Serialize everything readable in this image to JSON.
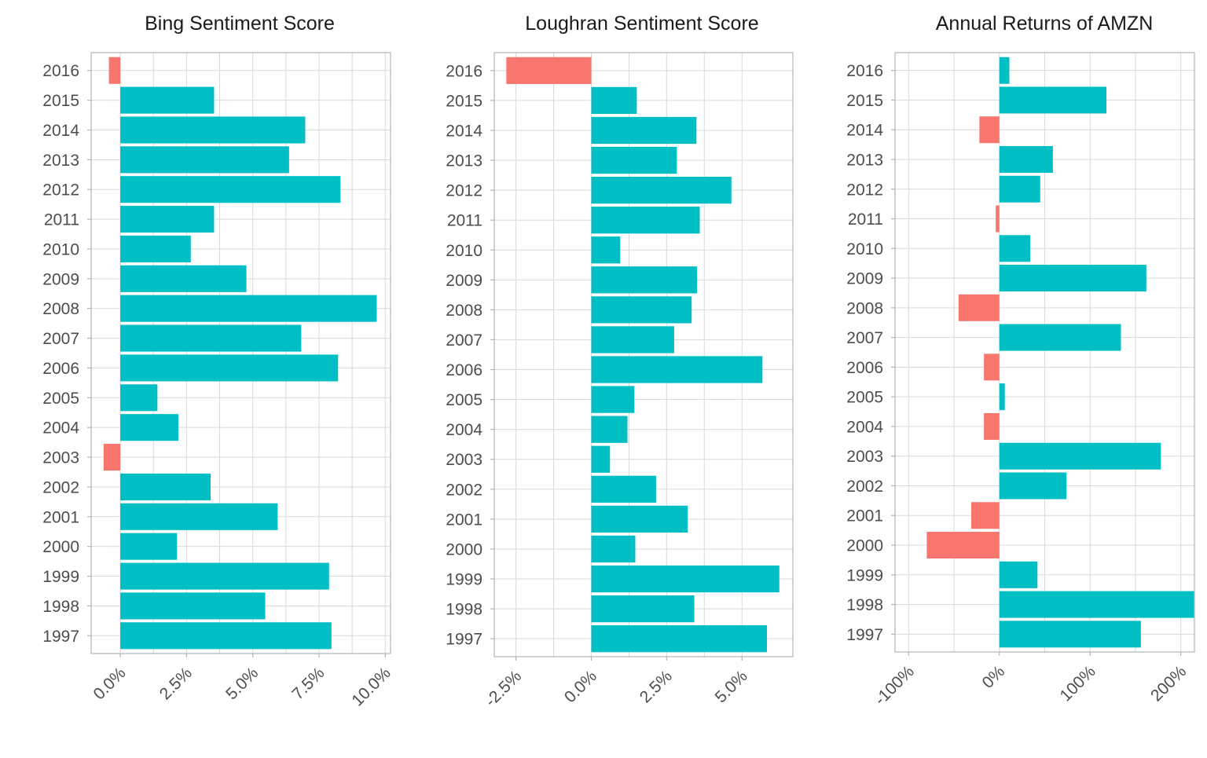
{
  "chart_data": [
    {
      "type": "bar",
      "orientation": "horizontal",
      "title": "Bing Sentiment Score",
      "categories": [
        "1997",
        "1998",
        "1999",
        "2000",
        "2001",
        "2002",
        "2003",
        "2004",
        "2005",
        "2006",
        "2007",
        "2008",
        "2009",
        "2010",
        "2011",
        "2012",
        "2013",
        "2014",
        "2015",
        "2016"
      ],
      "values": [
        0.0797,
        0.0547,
        0.0788,
        0.0214,
        0.0594,
        0.0341,
        -0.0063,
        0.0219,
        0.014,
        0.0822,
        0.0683,
        0.0968,
        0.0476,
        0.0266,
        0.0354,
        0.0831,
        0.0637,
        0.0698,
        0.0354,
        -0.0043
      ],
      "xlim": [
        -0.011,
        0.102
      ],
      "xticks": [
        0.0,
        0.025,
        0.05,
        0.075,
        0.1
      ],
      "xtick_labels": [
        "0.0%",
        "2.5%",
        "5.0%",
        "7.5%",
        "10.0%"
      ],
      "grid": true,
      "positive_color": "#00BFC4",
      "negative_color": "#F8766D"
    },
    {
      "type": "bar",
      "orientation": "horizontal",
      "title": "Loughran Sentiment Score",
      "categories": [
        "1997",
        "1998",
        "1999",
        "2000",
        "2001",
        "2002",
        "2003",
        "2004",
        "2005",
        "2006",
        "2007",
        "2008",
        "2009",
        "2010",
        "2011",
        "2012",
        "2013",
        "2014",
        "2015",
        "2016"
      ],
      "values": [
        0.0583,
        0.0342,
        0.0624,
        0.0146,
        0.032,
        0.0215,
        0.0062,
        0.012,
        0.0143,
        0.0568,
        0.0275,
        0.0333,
        0.0351,
        0.0096,
        0.036,
        0.0465,
        0.0284,
        0.0349,
        0.0151,
        -0.0282
      ],
      "xlim": [
        -0.0322,
        0.0669
      ],
      "xticks": [
        -0.025,
        0.0,
        0.025,
        0.05
      ],
      "xtick_labels": [
        "-2.5%",
        "0.0%",
        "2.5%",
        "5.0%"
      ],
      "grid": true,
      "positive_color": "#00BFC4",
      "negative_color": "#F8766D"
    },
    {
      "type": "bar",
      "orientation": "horizontal",
      "title": "Annual Returns of AMZN",
      "categories": [
        "1997",
        "1998",
        "1999",
        "2000",
        "2001",
        "2002",
        "2003",
        "2004",
        "2005",
        "2006",
        "2007",
        "2008",
        "2009",
        "2010",
        "2011",
        "2012",
        "2013",
        "2014",
        "2015",
        "2016"
      ],
      "values": [
        1.56,
        2.15,
        0.42,
        -0.8,
        -0.31,
        0.74,
        1.78,
        -0.17,
        0.06,
        -0.17,
        1.34,
        -0.45,
        1.62,
        0.34,
        -0.04,
        0.45,
        0.59,
        -0.22,
        1.18,
        0.11
      ],
      "xlim": [
        -1.15,
        2.15
      ],
      "xticks": [
        -1.0,
        0.0,
        1.0,
        2.0
      ],
      "xtick_labels": [
        "-100%",
        "0%",
        "100%",
        "200%"
      ],
      "grid": true,
      "positive_color": "#00BFC4",
      "negative_color": "#F8766D"
    }
  ]
}
